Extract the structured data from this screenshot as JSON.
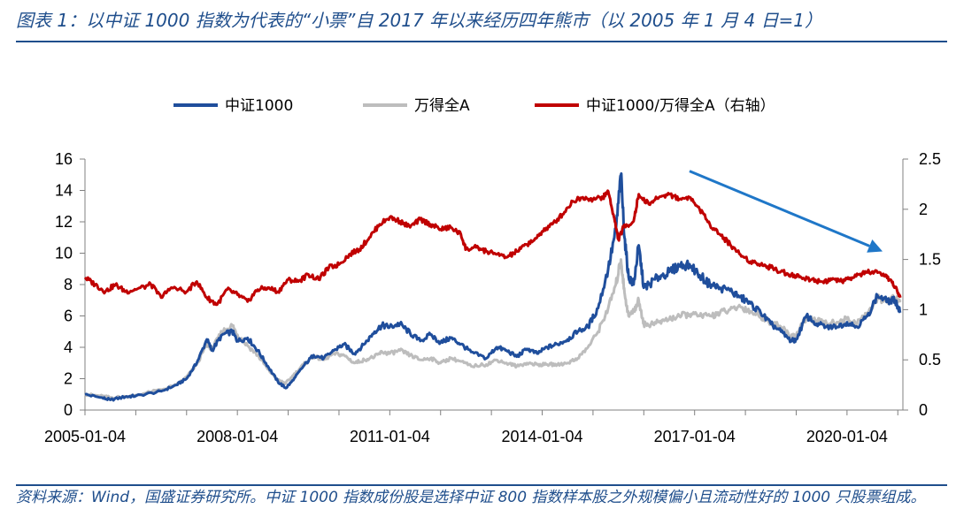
{
  "header": {
    "title": "图表 1：以中证 1000 指数为代表的“小票”自 2017 年以来经历四年熊市（以 2005 年 1 月 4 日=1）"
  },
  "footer": {
    "source": "资料来源：Wind，国盛证券研究所。中证 1000 指数成份股是选择中证 800 指数样本股之外规模偏小且流动性好的 1000 只股票组成。"
  },
  "chart_data": {
    "type": "line",
    "title": "",
    "xlabel": "",
    "ylabel": "",
    "x_ticks": [
      "2005-01-04",
      "2008-01-04",
      "2011-01-04",
      "2014-01-04",
      "2017-01-04",
      "2020-01-04"
    ],
    "x_range": [
      2005.0,
      2021.1
    ],
    "y_left": {
      "ticks": [
        0,
        2,
        4,
        6,
        8,
        10,
        12,
        14,
        16
      ],
      "range": [
        0,
        16
      ]
    },
    "y_right": {
      "ticks": [
        "0",
        "0.5",
        "1",
        "1.5",
        "2",
        "2.5"
      ],
      "range": [
        0,
        2.5
      ]
    },
    "grid": false,
    "legend_position": "top",
    "series": [
      {
        "name": "中证1000",
        "axis": "left",
        "color": "#1f4e9c",
        "points": [
          [
            2005.0,
            1.0
          ],
          [
            2005.3,
            0.8
          ],
          [
            2005.5,
            0.65
          ],
          [
            2005.8,
            0.85
          ],
          [
            2006.0,
            0.9
          ],
          [
            2006.5,
            1.2
          ],
          [
            2006.8,
            1.6
          ],
          [
            2007.0,
            2.0
          ],
          [
            2007.2,
            3.0
          ],
          [
            2007.4,
            4.5
          ],
          [
            2007.5,
            3.8
          ],
          [
            2007.7,
            4.8
          ],
          [
            2007.9,
            5.0
          ],
          [
            2008.0,
            4.4
          ],
          [
            2008.2,
            4.6
          ],
          [
            2008.4,
            3.8
          ],
          [
            2008.6,
            2.8
          ],
          [
            2008.8,
            1.8
          ],
          [
            2008.95,
            1.4
          ],
          [
            2009.1,
            1.9
          ],
          [
            2009.3,
            2.8
          ],
          [
            2009.5,
            3.5
          ],
          [
            2009.7,
            3.3
          ],
          [
            2009.9,
            3.8
          ],
          [
            2010.1,
            4.2
          ],
          [
            2010.3,
            3.6
          ],
          [
            2010.5,
            4.2
          ],
          [
            2010.7,
            5.0
          ],
          [
            2010.85,
            5.4
          ],
          [
            2011.0,
            5.3
          ],
          [
            2011.2,
            5.5
          ],
          [
            2011.4,
            4.9
          ],
          [
            2011.6,
            4.4
          ],
          [
            2011.8,
            4.8
          ],
          [
            2012.0,
            4.3
          ],
          [
            2012.2,
            4.6
          ],
          [
            2012.4,
            4.2
          ],
          [
            2012.6,
            3.7
          ],
          [
            2012.9,
            3.3
          ],
          [
            2013.1,
            4.0
          ],
          [
            2013.3,
            3.8
          ],
          [
            2013.5,
            3.4
          ],
          [
            2013.7,
            3.9
          ],
          [
            2013.9,
            3.6
          ],
          [
            2014.1,
            4.0
          ],
          [
            2014.3,
            4.2
          ],
          [
            2014.5,
            4.5
          ],
          [
            2014.7,
            5.0
          ],
          [
            2014.9,
            5.3
          ],
          [
            2015.1,
            6.5
          ],
          [
            2015.3,
            9.0
          ],
          [
            2015.45,
            11.5
          ],
          [
            2015.55,
            15.0
          ],
          [
            2015.62,
            11.0
          ],
          [
            2015.7,
            8.5
          ],
          [
            2015.8,
            8.0
          ],
          [
            2015.9,
            10.5
          ],
          [
            2016.0,
            7.8
          ],
          [
            2016.1,
            8.0
          ],
          [
            2016.3,
            8.5
          ],
          [
            2016.5,
            8.8
          ],
          [
            2016.7,
            9.2
          ],
          [
            2016.9,
            9.3
          ],
          [
            2017.1,
            8.6
          ],
          [
            2017.3,
            8.0
          ],
          [
            2017.5,
            7.8
          ],
          [
            2017.7,
            7.6
          ],
          [
            2017.9,
            7.2
          ],
          [
            2018.1,
            6.8
          ],
          [
            2018.3,
            6.2
          ],
          [
            2018.5,
            5.5
          ],
          [
            2018.7,
            5.0
          ],
          [
            2018.9,
            4.4
          ],
          [
            2019.0,
            4.5
          ],
          [
            2019.2,
            6.0
          ],
          [
            2019.4,
            5.5
          ],
          [
            2019.6,
            5.3
          ],
          [
            2019.8,
            5.3
          ],
          [
            2020.0,
            5.6
          ],
          [
            2020.2,
            5.3
          ],
          [
            2020.4,
            6.0
          ],
          [
            2020.6,
            7.3
          ],
          [
            2020.8,
            6.9
          ],
          [
            2020.95,
            7.0
          ],
          [
            2021.05,
            6.2
          ]
        ]
      },
      {
        "name": "万得全A",
        "axis": "left",
        "color": "#bdbdbd",
        "points": [
          [
            2005.0,
            1.0
          ],
          [
            2005.3,
            0.9
          ],
          [
            2005.5,
            0.8
          ],
          [
            2005.8,
            0.85
          ],
          [
            2006.0,
            0.95
          ],
          [
            2006.5,
            1.3
          ],
          [
            2006.8,
            1.6
          ],
          [
            2007.0,
            2.1
          ],
          [
            2007.2,
            2.9
          ],
          [
            2007.4,
            4.2
          ],
          [
            2007.5,
            3.9
          ],
          [
            2007.7,
            5.0
          ],
          [
            2007.9,
            5.4
          ],
          [
            2008.0,
            4.8
          ],
          [
            2008.2,
            4.1
          ],
          [
            2008.4,
            3.5
          ],
          [
            2008.6,
            2.6
          ],
          [
            2008.8,
            1.9
          ],
          [
            2008.95,
            1.7
          ],
          [
            2009.1,
            2.2
          ],
          [
            2009.3,
            2.9
          ],
          [
            2009.5,
            3.4
          ],
          [
            2009.7,
            3.2
          ],
          [
            2009.9,
            3.6
          ],
          [
            2010.1,
            3.5
          ],
          [
            2010.3,
            3.0
          ],
          [
            2010.5,
            3.2
          ],
          [
            2010.7,
            3.4
          ],
          [
            2010.85,
            3.7
          ],
          [
            2011.0,
            3.6
          ],
          [
            2011.2,
            3.8
          ],
          [
            2011.4,
            3.5
          ],
          [
            2011.6,
            3.2
          ],
          [
            2011.8,
            3.3
          ],
          [
            2012.0,
            3.0
          ],
          [
            2012.2,
            3.3
          ],
          [
            2012.4,
            3.1
          ],
          [
            2012.6,
            2.8
          ],
          [
            2012.9,
            2.9
          ],
          [
            2013.1,
            3.2
          ],
          [
            2013.3,
            3.0
          ],
          [
            2013.5,
            2.8
          ],
          [
            2013.7,
            3.0
          ],
          [
            2013.9,
            2.9
          ],
          [
            2014.1,
            2.9
          ],
          [
            2014.3,
            2.9
          ],
          [
            2014.5,
            3.0
          ],
          [
            2014.7,
            3.3
          ],
          [
            2014.9,
            4.0
          ],
          [
            2015.1,
            5.0
          ],
          [
            2015.3,
            6.5
          ],
          [
            2015.45,
            8.0
          ],
          [
            2015.55,
            9.6
          ],
          [
            2015.62,
            7.5
          ],
          [
            2015.7,
            6.0
          ],
          [
            2015.8,
            6.3
          ],
          [
            2015.9,
            7.0
          ],
          [
            2016.0,
            5.5
          ],
          [
            2016.1,
            5.4
          ],
          [
            2016.3,
            5.6
          ],
          [
            2016.5,
            5.8
          ],
          [
            2016.7,
            6.0
          ],
          [
            2016.9,
            6.1
          ],
          [
            2017.1,
            6.0
          ],
          [
            2017.3,
            6.0
          ],
          [
            2017.5,
            6.2
          ],
          [
            2017.7,
            6.4
          ],
          [
            2017.9,
            6.6
          ],
          [
            2018.1,
            6.3
          ],
          [
            2018.3,
            6.0
          ],
          [
            2018.5,
            5.6
          ],
          [
            2018.7,
            5.3
          ],
          [
            2018.9,
            4.7
          ],
          [
            2019.0,
            4.8
          ],
          [
            2019.2,
            5.9
          ],
          [
            2019.4,
            5.7
          ],
          [
            2019.6,
            5.5
          ],
          [
            2019.8,
            5.6
          ],
          [
            2020.0,
            5.8
          ],
          [
            2020.2,
            5.5
          ],
          [
            2020.4,
            6.2
          ],
          [
            2020.6,
            7.1
          ],
          [
            2020.8,
            7.0
          ],
          [
            2020.95,
            7.1
          ],
          [
            2021.05,
            7.0
          ]
        ]
      },
      {
        "name": "中证1000/万得全A（右轴）",
        "axis": "right",
        "color": "#c00000",
        "points": [
          [
            2005.0,
            1.32
          ],
          [
            2005.2,
            1.25
          ],
          [
            2005.4,
            1.18
          ],
          [
            2005.6,
            1.25
          ],
          [
            2005.8,
            1.18
          ],
          [
            2006.0,
            1.2
          ],
          [
            2006.3,
            1.25
          ],
          [
            2006.5,
            1.12
          ],
          [
            2006.7,
            1.22
          ],
          [
            2007.0,
            1.18
          ],
          [
            2007.2,
            1.28
          ],
          [
            2007.4,
            1.12
          ],
          [
            2007.6,
            1.05
          ],
          [
            2007.8,
            1.2
          ],
          [
            2008.0,
            1.15
          ],
          [
            2008.2,
            1.08
          ],
          [
            2008.4,
            1.2
          ],
          [
            2008.6,
            1.22
          ],
          [
            2008.8,
            1.18
          ],
          [
            2009.0,
            1.3
          ],
          [
            2009.2,
            1.28
          ],
          [
            2009.4,
            1.35
          ],
          [
            2009.6,
            1.3
          ],
          [
            2009.8,
            1.42
          ],
          [
            2010.0,
            1.45
          ],
          [
            2010.2,
            1.55
          ],
          [
            2010.4,
            1.6
          ],
          [
            2010.6,
            1.72
          ],
          [
            2010.8,
            1.85
          ],
          [
            2011.0,
            1.92
          ],
          [
            2011.2,
            1.88
          ],
          [
            2011.4,
            1.82
          ],
          [
            2011.6,
            1.9
          ],
          [
            2011.8,
            1.85
          ],
          [
            2012.0,
            1.8
          ],
          [
            2012.2,
            1.82
          ],
          [
            2012.4,
            1.75
          ],
          [
            2012.5,
            1.6
          ],
          [
            2012.7,
            1.62
          ],
          [
            2012.9,
            1.58
          ],
          [
            2013.1,
            1.55
          ],
          [
            2013.3,
            1.52
          ],
          [
            2013.5,
            1.58
          ],
          [
            2013.7,
            1.65
          ],
          [
            2013.9,
            1.72
          ],
          [
            2014.0,
            1.78
          ],
          [
            2014.2,
            1.85
          ],
          [
            2014.4,
            1.95
          ],
          [
            2014.6,
            2.08
          ],
          [
            2014.8,
            2.12
          ],
          [
            2015.0,
            2.1
          ],
          [
            2015.2,
            2.12
          ],
          [
            2015.3,
            2.18
          ],
          [
            2015.4,
            1.95
          ],
          [
            2015.5,
            1.7
          ],
          [
            2015.6,
            1.82
          ],
          [
            2015.8,
            1.88
          ],
          [
            2015.9,
            2.15
          ],
          [
            2016.1,
            2.05
          ],
          [
            2016.3,
            2.12
          ],
          [
            2016.5,
            2.15
          ],
          [
            2016.7,
            2.1
          ],
          [
            2016.9,
            2.12
          ],
          [
            2017.1,
            2.0
          ],
          [
            2017.3,
            1.85
          ],
          [
            2017.5,
            1.75
          ],
          [
            2017.7,
            1.65
          ],
          [
            2017.9,
            1.55
          ],
          [
            2018.1,
            1.48
          ],
          [
            2018.3,
            1.45
          ],
          [
            2018.5,
            1.42
          ],
          [
            2018.7,
            1.38
          ],
          [
            2018.9,
            1.35
          ],
          [
            2019.1,
            1.32
          ],
          [
            2019.3,
            1.3
          ],
          [
            2019.5,
            1.28
          ],
          [
            2019.7,
            1.3
          ],
          [
            2019.9,
            1.28
          ],
          [
            2020.1,
            1.32
          ],
          [
            2020.3,
            1.36
          ],
          [
            2020.5,
            1.38
          ],
          [
            2020.7,
            1.34
          ],
          [
            2020.85,
            1.3
          ],
          [
            2020.95,
            1.22
          ],
          [
            2021.05,
            1.12
          ]
        ]
      }
    ],
    "annotations": [
      {
        "type": "arrow",
        "color": "#1f77c8",
        "from": [
          2016.9,
          2.38
        ],
        "to": [
          2020.7,
          1.58
        ],
        "axis": "right"
      }
    ]
  }
}
